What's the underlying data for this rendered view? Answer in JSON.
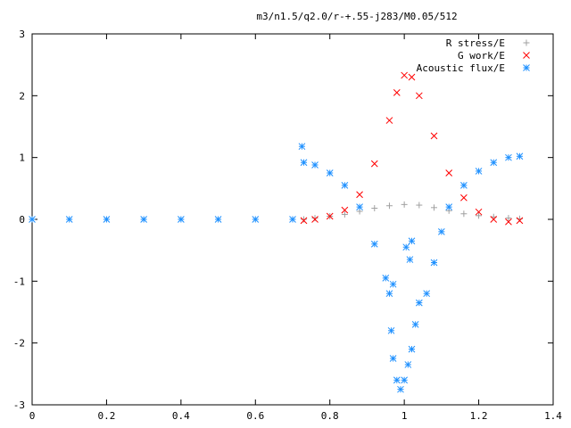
{
  "chart_data": {
    "type": "scatter",
    "title": "m3/n1.5/q2.0/r-+.55-j283/M0.05/512",
    "xlabel": "",
    "ylabel": "",
    "xlim": [
      0,
      1.4
    ],
    "ylim": [
      -3,
      3
    ],
    "x_ticks": [
      "0",
      "0.2",
      "0.4",
      "0.6",
      "0.8",
      "1",
      "1.2",
      "1.4"
    ],
    "y_ticks": [
      "-3",
      "-2",
      "-1",
      "0",
      "1",
      "2",
      "3"
    ],
    "legend_position": "top-right",
    "grid": false,
    "series": [
      {
        "name": "R stress/E",
        "marker": "+",
        "color": "#a0a0a0",
        "points": [
          [
            0.73,
            0.0
          ],
          [
            0.76,
            0.02
          ],
          [
            0.8,
            0.05
          ],
          [
            0.84,
            0.08
          ],
          [
            0.88,
            0.13
          ],
          [
            0.92,
            0.18
          ],
          [
            0.96,
            0.22
          ],
          [
            1.0,
            0.24
          ],
          [
            1.04,
            0.23
          ],
          [
            1.08,
            0.19
          ],
          [
            1.12,
            0.14
          ],
          [
            1.16,
            0.09
          ],
          [
            1.2,
            0.06
          ],
          [
            1.24,
            0.04
          ],
          [
            1.28,
            0.02
          ],
          [
            1.31,
            0.01
          ]
        ]
      },
      {
        "name": "G work/E",
        "marker": "x",
        "color": "#ff0000",
        "points": [
          [
            0.73,
            -0.02
          ],
          [
            0.76,
            0.0
          ],
          [
            0.8,
            0.05
          ],
          [
            0.84,
            0.15
          ],
          [
            0.88,
            0.4
          ],
          [
            0.92,
            0.9
          ],
          [
            0.96,
            1.6
          ],
          [
            0.98,
            2.05
          ],
          [
            1.0,
            2.33
          ],
          [
            1.02,
            2.3
          ],
          [
            1.04,
            2.0
          ],
          [
            1.08,
            1.35
          ],
          [
            1.12,
            0.75
          ],
          [
            1.16,
            0.35
          ],
          [
            1.2,
            0.12
          ],
          [
            1.24,
            0.0
          ],
          [
            1.28,
            -0.04
          ],
          [
            1.31,
            -0.02
          ]
        ]
      },
      {
        "name": "Acoustic flux/E",
        "marker": "*",
        "color": "#1e90ff",
        "points": [
          [
            0.0,
            0.0
          ],
          [
            0.1,
            0.0
          ],
          [
            0.2,
            0.0
          ],
          [
            0.3,
            0.0
          ],
          [
            0.4,
            0.0
          ],
          [
            0.5,
            0.0
          ],
          [
            0.6,
            0.0
          ],
          [
            0.7,
            0.0
          ],
          [
            0.725,
            1.18
          ],
          [
            0.73,
            0.92
          ],
          [
            0.76,
            0.88
          ],
          [
            0.8,
            0.75
          ],
          [
            0.84,
            0.55
          ],
          [
            0.88,
            0.2
          ],
          [
            0.92,
            -0.4
          ],
          [
            0.95,
            -0.95
          ],
          [
            0.97,
            -1.05
          ],
          [
            0.96,
            -1.2
          ],
          [
            0.965,
            -1.8
          ],
          [
            0.97,
            -2.25
          ],
          [
            0.98,
            -2.6
          ],
          [
            0.99,
            -2.75
          ],
          [
            1.0,
            -2.6
          ],
          [
            1.01,
            -2.35
          ],
          [
            1.02,
            -2.1
          ],
          [
            1.03,
            -1.7
          ],
          [
            1.02,
            -0.35
          ],
          [
            1.005,
            -0.45
          ],
          [
            1.015,
            -0.65
          ],
          [
            1.04,
            -1.35
          ],
          [
            1.06,
            -1.2
          ],
          [
            1.08,
            -0.7
          ],
          [
            1.1,
            -0.2
          ],
          [
            1.12,
            0.2
          ],
          [
            1.16,
            0.55
          ],
          [
            1.2,
            0.78
          ],
          [
            1.24,
            0.92
          ],
          [
            1.28,
            1.0
          ],
          [
            1.31,
            1.02
          ]
        ]
      }
    ]
  }
}
